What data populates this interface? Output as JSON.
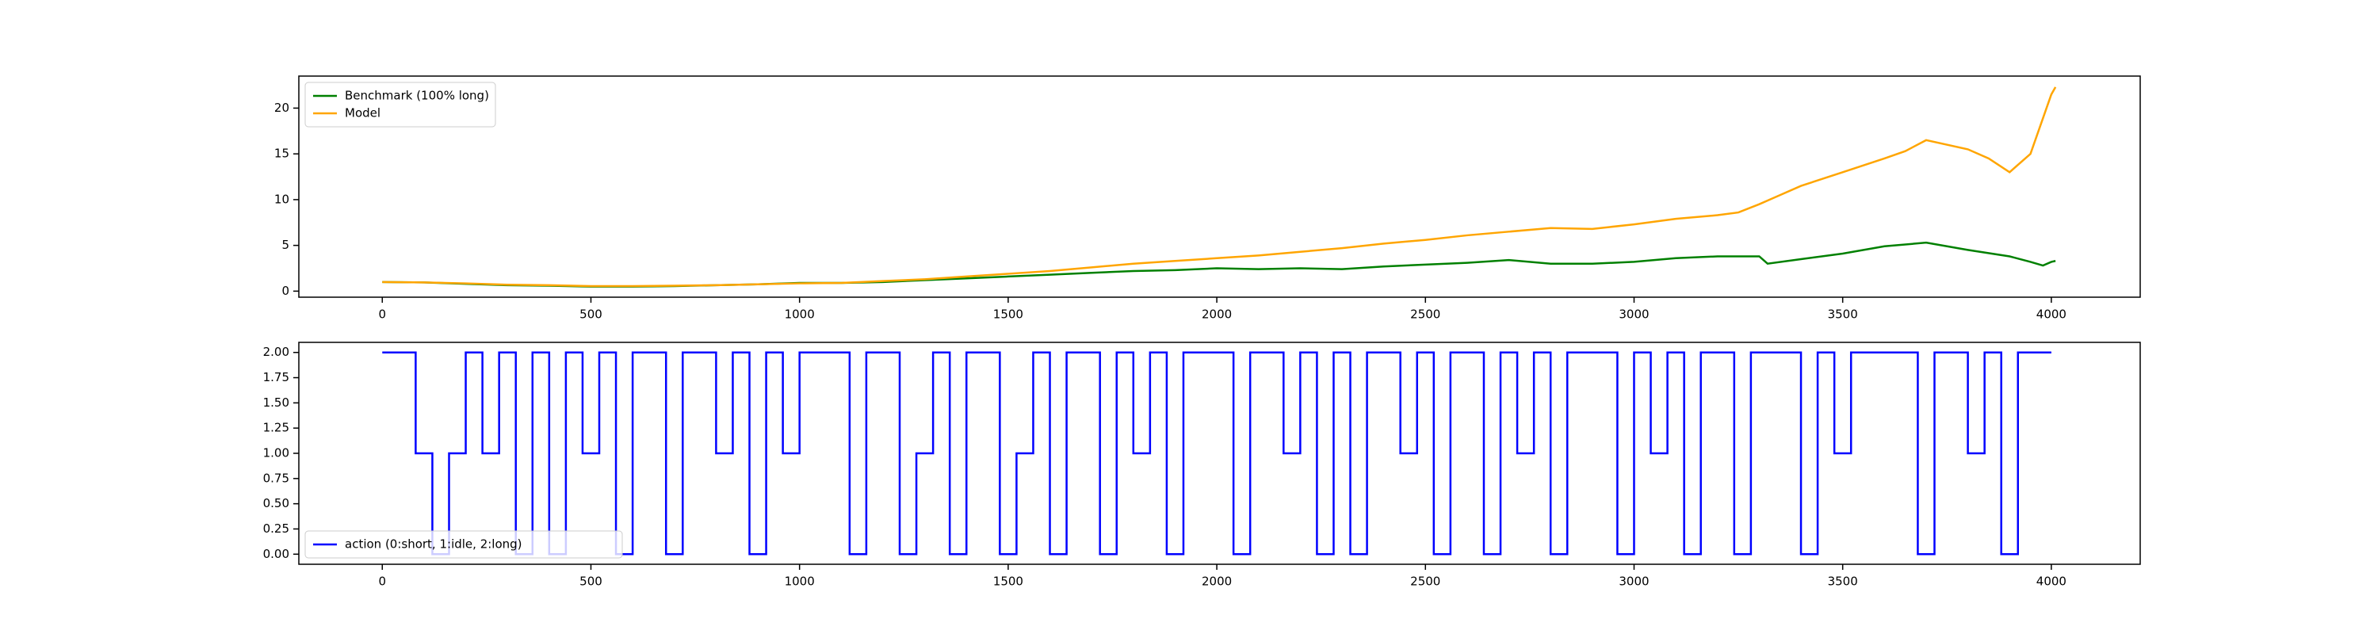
{
  "chart_data": [
    {
      "type": "line",
      "legend": "upper left",
      "xlim": [
        -200,
        4213
      ],
      "ylim": [
        -0.66,
        23.5
      ],
      "xticks": [
        0,
        500,
        1000,
        1500,
        2000,
        2500,
        3000,
        3500,
        4000
      ],
      "yticks": [
        0,
        5,
        10,
        15,
        20
      ],
      "series": [
        {
          "name": "Benchmark (100% long)",
          "color": "#008000",
          "x": [
            0,
            100,
            200,
            300,
            400,
            500,
            600,
            700,
            800,
            900,
            1000,
            1100,
            1200,
            1300,
            1400,
            1500,
            1600,
            1700,
            1800,
            1900,
            2000,
            2100,
            2200,
            2300,
            2400,
            2500,
            2600,
            2700,
            2800,
            2900,
            3000,
            3100,
            3200,
            3300,
            3320,
            3400,
            3500,
            3600,
            3700,
            3800,
            3900,
            3950,
            3980,
            4000,
            4010
          ],
          "values": [
            1.0,
            0.95,
            0.8,
            0.65,
            0.6,
            0.5,
            0.5,
            0.55,
            0.65,
            0.75,
            0.9,
            0.9,
            1.0,
            1.2,
            1.4,
            1.6,
            1.8,
            2.0,
            2.2,
            2.3,
            2.5,
            2.4,
            2.5,
            2.4,
            2.7,
            2.9,
            3.1,
            3.4,
            3.0,
            3.0,
            3.2,
            3.6,
            3.8,
            3.8,
            3.0,
            3.5,
            4.1,
            4.9,
            5.3,
            4.5,
            3.8,
            3.2,
            2.8,
            3.2,
            3.3
          ]
        },
        {
          "name": "Model",
          "color": "#ffa500",
          "x": [
            0,
            100,
            200,
            300,
            400,
            500,
            600,
            700,
            800,
            900,
            1000,
            1100,
            1200,
            1300,
            1400,
            1500,
            1600,
            1700,
            1800,
            1900,
            2000,
            2100,
            2200,
            2300,
            2400,
            2500,
            2600,
            2700,
            2800,
            2900,
            3000,
            3100,
            3200,
            3250,
            3300,
            3350,
            3400,
            3500,
            3600,
            3650,
            3700,
            3800,
            3850,
            3900,
            3950,
            4000,
            4010
          ],
          "values": [
            1.0,
            0.95,
            0.85,
            0.7,
            0.65,
            0.55,
            0.55,
            0.6,
            0.65,
            0.75,
            0.85,
            0.9,
            1.1,
            1.3,
            1.6,
            1.9,
            2.2,
            2.6,
            3.0,
            3.3,
            3.6,
            3.9,
            4.3,
            4.7,
            5.2,
            5.6,
            6.1,
            6.5,
            6.9,
            6.8,
            7.3,
            7.9,
            8.3,
            8.6,
            9.5,
            10.5,
            11.5,
            13.0,
            14.5,
            15.3,
            16.5,
            15.5,
            14.5,
            13.0,
            15.0,
            21.5,
            22.3
          ]
        }
      ]
    },
    {
      "type": "line",
      "legend": "lower left",
      "step": "post",
      "xlim": [
        -200,
        4213
      ],
      "ylim": [
        -0.1,
        2.1
      ],
      "xticks": [
        0,
        500,
        1000,
        1500,
        2000,
        2500,
        3000,
        3500,
        4000
      ],
      "yticks": [
        {
          "value": 0,
          "label": "0.00"
        },
        {
          "value": 0.25,
          "label": "0.25"
        },
        {
          "value": 0.5,
          "label": "0.50"
        },
        {
          "value": 0.75,
          "label": "0.75"
        },
        {
          "value": 1,
          "label": "1.00"
        },
        {
          "value": 1.25,
          "label": "1.25"
        },
        {
          "value": 1.5,
          "label": "1.50"
        },
        {
          "value": 1.75,
          "label": "1.75"
        },
        {
          "value": 2,
          "label": "2.00"
        }
      ],
      "series": [
        {
          "name": "action (0:short, 1:idle, 2:long)",
          "color": "#0000ff",
          "x": [
            0,
            40,
            80,
            120,
            160,
            200,
            240,
            280,
            320,
            360,
            400,
            440,
            480,
            520,
            560,
            600,
            640,
            680,
            720,
            760,
            800,
            840,
            880,
            920,
            960,
            1000,
            1040,
            1080,
            1120,
            1160,
            1200,
            1240,
            1280,
            1320,
            1360,
            1400,
            1440,
            1480,
            1520,
            1560,
            1600,
            1640,
            1680,
            1720,
            1760,
            1800,
            1840,
            1880,
            1920,
            1960,
            2000,
            2040,
            2080,
            2120,
            2160,
            2200,
            2240,
            2280,
            2320,
            2360,
            2400,
            2440,
            2480,
            2520,
            2560,
            2600,
            2640,
            2680,
            2720,
            2760,
            2800,
            2840,
            2880,
            2920,
            2960,
            3000,
            3040,
            3080,
            3120,
            3160,
            3200,
            3240,
            3280,
            3320,
            3360,
            3400,
            3440,
            3480,
            3520,
            3560,
            3600,
            3640,
            3680,
            3720,
            3760,
            3800,
            3840,
            3880,
            3920,
            3960,
            4000
          ],
          "values": [
            2,
            2,
            1,
            0,
            1,
            2,
            1,
            2,
            0,
            2,
            0,
            2,
            1,
            2,
            0,
            2,
            2,
            0,
            2,
            2,
            1,
            2,
            0,
            2,
            1,
            2,
            2,
            2,
            0,
            2,
            2,
            0,
            1,
            2,
            0,
            2,
            2,
            0,
            1,
            2,
            0,
            2,
            2,
            0,
            2,
            1,
            2,
            0,
            2,
            2,
            2,
            0,
            2,
            2,
            1,
            2,
            0,
            2,
            0,
            2,
            2,
            1,
            2,
            0,
            2,
            2,
            0,
            2,
            1,
            2,
            0,
            2,
            2,
            2,
            0,
            2,
            1,
            2,
            0,
            2,
            2,
            0,
            2,
            2,
            2,
            0,
            2,
            1,
            2,
            2,
            2,
            2,
            0,
            2,
            2,
            1,
            2,
            0,
            2,
            2,
            2
          ]
        }
      ]
    }
  ]
}
